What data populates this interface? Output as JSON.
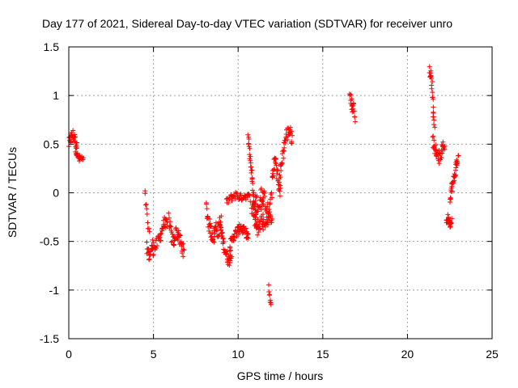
{
  "chart_data": {
    "type": "scatter",
    "title": "Day 177 of 2021, Sidereal Day-to-day VTEC variation (SDTVAR) for receiver unro",
    "xlabel": "GPS time / hours",
    "ylabel": "SDTVAR / TECUs",
    "xlim": [
      0,
      25
    ],
    "ylim": [
      -1.5,
      1.5
    ],
    "xticks": [
      0,
      5,
      10,
      15,
      20,
      25
    ],
    "xtick_labels": [
      "0",
      "5",
      "10",
      "15",
      "20",
      "25"
    ],
    "yticks": [
      -1.5,
      -1,
      -0.5,
      0,
      0.5,
      1,
      1.5
    ],
    "ytick_labels": [
      "-1.5",
      "-1",
      "-0.5",
      "0",
      "0.5",
      "1",
      "1.5"
    ],
    "grid": true,
    "marker": "+",
    "color": "#ff0000",
    "series": [
      {
        "name": "SDTVAR",
        "segments": [
          {
            "x0": 0.0,
            "x1": 0.5,
            "n": 30,
            "ys": [
              0.5,
              0.55,
              0.6,
              0.58,
              0.52,
              0.45
            ],
            "jitter": 0.06
          },
          {
            "x0": 0.4,
            "x1": 0.85,
            "n": 20,
            "ys": [
              0.45,
              0.38,
              0.34,
              0.36,
              0.33
            ],
            "jitter": 0.04
          },
          {
            "x0": 4.5,
            "x1": 4.75,
            "n": 10,
            "ys": [
              0.0,
              -0.15,
              -0.3,
              -0.45
            ],
            "jitter": 0.05
          },
          {
            "x0": 4.6,
            "x1": 5.0,
            "n": 20,
            "ys": [
              -0.55,
              -0.65,
              -0.6,
              -0.5
            ],
            "jitter": 0.06
          },
          {
            "x0": 5.0,
            "x1": 5.4,
            "n": 15,
            "ys": [
              -0.6,
              -0.55,
              -0.5,
              -0.45
            ],
            "jitter": 0.06
          },
          {
            "x0": 5.4,
            "x1": 5.8,
            "n": 20,
            "ys": [
              -0.45,
              -0.35,
              -0.3,
              -0.35
            ],
            "jitter": 0.06
          },
          {
            "x0": 5.9,
            "x1": 6.8,
            "n": 45,
            "ys": [
              -0.25,
              -0.45,
              -0.5,
              -0.4,
              -0.45,
              -0.55,
              -0.6
            ],
            "jitter": 0.07
          },
          {
            "x0": 8.1,
            "x1": 9.0,
            "n": 50,
            "ys": [
              -0.15,
              -0.3,
              -0.4,
              -0.45,
              -0.35,
              -0.4,
              -0.3
            ],
            "jitter": 0.08
          },
          {
            "x0": 8.9,
            "x1": 9.6,
            "n": 40,
            "ys": [
              -0.3,
              -0.45,
              -0.55,
              -0.65,
              -0.7,
              -0.6
            ],
            "jitter": 0.06
          },
          {
            "x0": 9.5,
            "x1": 10.6,
            "n": 55,
            "ys": [
              -0.55,
              -0.45,
              -0.4,
              -0.35,
              -0.4,
              -0.45
            ],
            "jitter": 0.05
          },
          {
            "x0": 9.3,
            "x1": 10.7,
            "n": 45,
            "ys": [
              -0.1,
              -0.05,
              -0.02,
              -0.05,
              -0.03,
              -0.05
            ],
            "jitter": 0.04
          },
          {
            "x0": 10.6,
            "x1": 11.1,
            "n": 40,
            "ys": [
              0.6,
              0.4,
              0.2,
              0.0,
              -0.2,
              -0.3
            ],
            "jitter": 0.08
          },
          {
            "x0": 10.8,
            "x1": 11.5,
            "n": 40,
            "ys": [
              -0.1,
              -0.2,
              -0.3,
              -0.4,
              -0.2,
              -0.1
            ],
            "jitter": 0.1
          },
          {
            "x0": 11.0,
            "x1": 12.0,
            "n": 40,
            "ys": [
              -0.05,
              -0.15,
              0.0,
              -0.1,
              -0.2,
              -0.05
            ],
            "jitter": 0.08
          },
          {
            "x0": 11.4,
            "x1": 12.0,
            "n": 25,
            "ys": [
              -0.3,
              -0.35,
              -0.25,
              -0.3
            ],
            "jitter": 0.06
          },
          {
            "x0": 11.8,
            "x1": 11.95,
            "n": 8,
            "ys": [
              -0.95,
              -1.1,
              -1.15
            ],
            "jitter": 0.03
          },
          {
            "x0": 12.0,
            "x1": 12.5,
            "n": 30,
            "ys": [
              0.15,
              0.25,
              0.35,
              0.2,
              0.1,
              0.0
            ],
            "jitter": 0.08
          },
          {
            "x0": 12.4,
            "x1": 13.2,
            "n": 45,
            "ys": [
              0.1,
              0.3,
              0.5,
              0.6,
              0.65,
              0.55
            ],
            "jitter": 0.07
          },
          {
            "x0": 16.6,
            "x1": 16.9,
            "n": 20,
            "ys": [
              1.0,
              0.95,
              0.85,
              0.9,
              0.78
            ],
            "jitter": 0.05
          },
          {
            "x0": 21.3,
            "x1": 21.6,
            "n": 25,
            "ys": [
              1.25,
              1.2,
              1.1,
              0.85,
              0.7
            ],
            "jitter": 0.05
          },
          {
            "x0": 21.5,
            "x1": 22.2,
            "n": 40,
            "ys": [
              0.55,
              0.45,
              0.4,
              0.35,
              0.45,
              0.5
            ],
            "jitter": 0.06
          },
          {
            "x0": 22.3,
            "x1": 22.6,
            "n": 20,
            "ys": [
              -0.3,
              -0.25,
              -0.32,
              -0.28
            ],
            "jitter": 0.04
          },
          {
            "x0": 22.5,
            "x1": 23.0,
            "n": 35,
            "ys": [
              -0.05,
              0.05,
              0.1,
              0.2,
              0.3,
              0.35
            ],
            "jitter": 0.06
          }
        ]
      }
    ]
  }
}
